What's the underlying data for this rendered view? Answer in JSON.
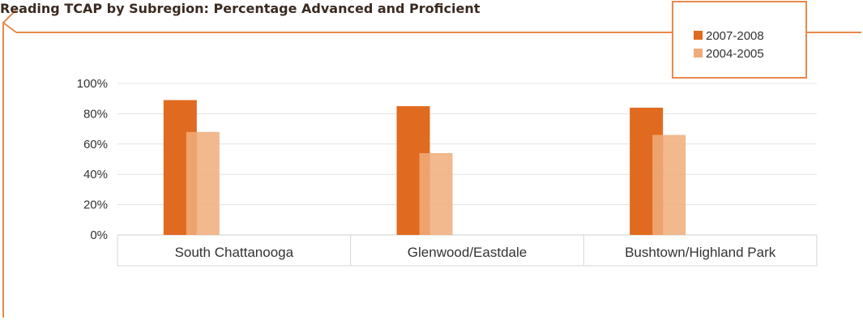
{
  "chart_data": {
    "type": "bar",
    "title": "Reading TCAP by Subregion: Percentage Advanced and Proficient",
    "categories": [
      "South Chattanooga",
      "Glenwood/Eastdale",
      "Bushtown/Highland Park"
    ],
    "series": [
      {
        "name": "2007-2008",
        "values": [
          89,
          85,
          84
        ],
        "color": "#e06a1f"
      },
      {
        "name": "2004-2005",
        "values": [
          68,
          54,
          66
        ],
        "color": "#f0ab7a"
      }
    ],
    "yticks": [
      "0%",
      "20%",
      "40%",
      "60%",
      "80%",
      "100%"
    ],
    "ylim": [
      0,
      100
    ],
    "grid": true,
    "legend_position": "top-right",
    "frame_color": "#e8894a"
  }
}
